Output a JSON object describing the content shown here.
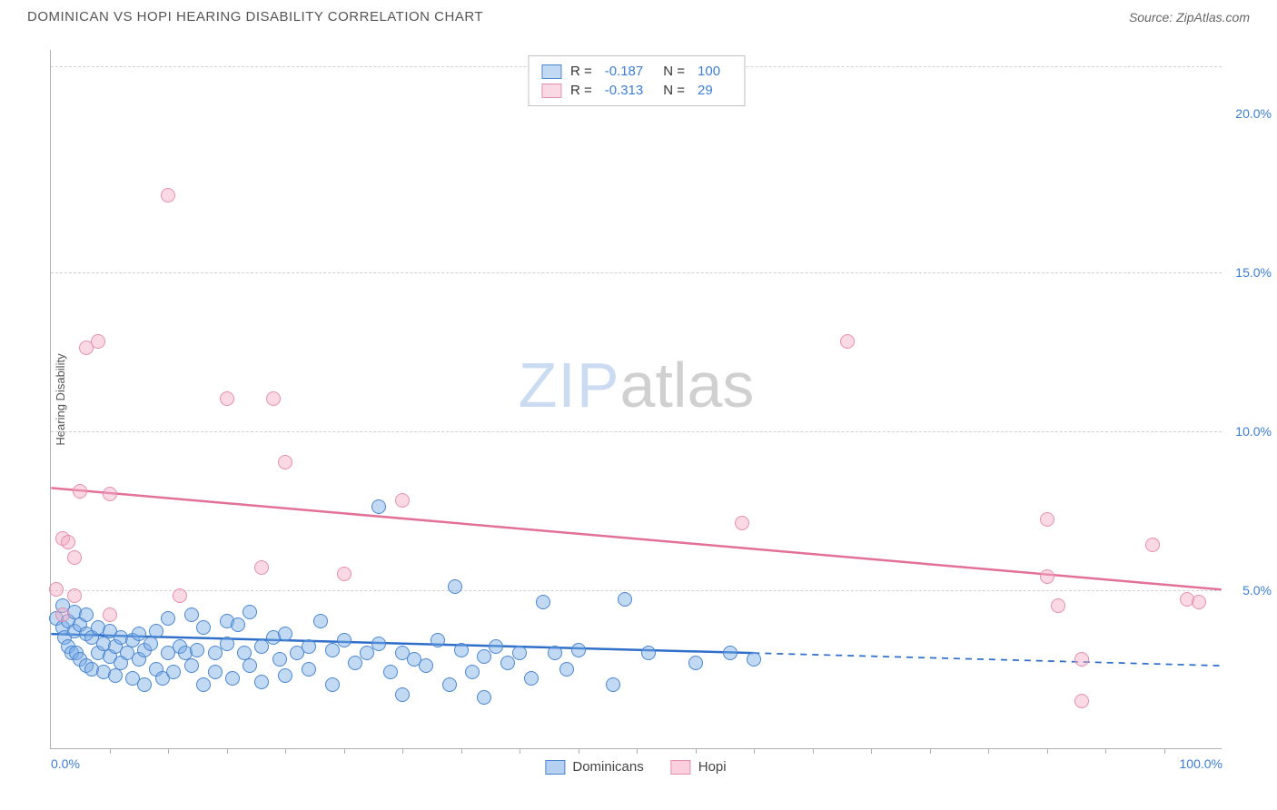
{
  "title": "DOMINICAN VS HOPI HEARING DISABILITY CORRELATION CHART",
  "source": "Source: ZipAtlas.com",
  "watermark": {
    "part1": "ZIP",
    "part2": "atlas"
  },
  "chart": {
    "type": "scatter",
    "background_color": "#ffffff",
    "grid_color": "#d0d0d0",
    "axis_color": "#b0b0b0",
    "ylabel": "Hearing Disability",
    "xlim": [
      0,
      100
    ],
    "ylim": [
      0,
      22
    ],
    "yticks": [
      {
        "value": 5,
        "label": "5.0%"
      },
      {
        "value": 10,
        "label": "10.0%"
      },
      {
        "value": 15,
        "label": "15.0%"
      },
      {
        "value": 20,
        "label": "20.0%"
      }
    ],
    "ygridlines": [
      5,
      10,
      15,
      21.5
    ],
    "xticks_at": [
      5,
      10,
      15,
      20,
      25,
      30,
      35,
      40,
      45,
      50,
      55,
      60,
      65,
      70,
      75,
      80,
      85,
      90,
      95
    ],
    "xlabels": [
      {
        "value": 0,
        "label": "0.0%",
        "align": "left"
      },
      {
        "value": 100,
        "label": "100.0%",
        "align": "right"
      }
    ],
    "label_fontsize": 14,
    "label_color": "#3b7dd8",
    "point_radius": 8,
    "point_stroke_width": 1.2,
    "series": [
      {
        "name": "Dominicans",
        "fill": "rgba(120,170,230,0.45)",
        "stroke": "#4a86d0",
        "line_color": "#2f6fc9",
        "line_width": 2.5,
        "r_value": "-0.187",
        "n_value": "100",
        "trend": {
          "x0": 0,
          "y0": 3.6,
          "x1": 100,
          "y1": 2.6,
          "solid_until_x": 60
        },
        "points": [
          [
            0.5,
            4.1
          ],
          [
            1,
            3.8
          ],
          [
            1,
            4.5
          ],
          [
            1.2,
            3.5
          ],
          [
            1.5,
            3.2
          ],
          [
            1.5,
            4.0
          ],
          [
            1.8,
            3.0
          ],
          [
            2,
            3.7
          ],
          [
            2,
            4.3
          ],
          [
            2.2,
            3.0
          ],
          [
            2.5,
            3.9
          ],
          [
            2.5,
            2.8
          ],
          [
            3,
            3.6
          ],
          [
            3,
            4.2
          ],
          [
            3,
            2.6
          ],
          [
            3.5,
            3.5
          ],
          [
            3.5,
            2.5
          ],
          [
            4,
            3.8
          ],
          [
            4,
            3.0
          ],
          [
            4.5,
            3.3
          ],
          [
            4.5,
            2.4
          ],
          [
            5,
            3.7
          ],
          [
            5,
            2.9
          ],
          [
            5.5,
            3.2
          ],
          [
            5.5,
            2.3
          ],
          [
            6,
            3.5
          ],
          [
            6,
            2.7
          ],
          [
            6.5,
            3.0
          ],
          [
            7,
            3.4
          ],
          [
            7,
            2.2
          ],
          [
            7.5,
            3.6
          ],
          [
            7.5,
            2.8
          ],
          [
            8,
            3.1
          ],
          [
            8,
            2.0
          ],
          [
            8.5,
            3.3
          ],
          [
            9,
            2.5
          ],
          [
            9,
            3.7
          ],
          [
            9.5,
            2.2
          ],
          [
            10,
            3.0
          ],
          [
            10,
            4.1
          ],
          [
            10.5,
            2.4
          ],
          [
            11,
            3.2
          ],
          [
            11.5,
            3.0
          ],
          [
            12,
            4.2
          ],
          [
            12,
            2.6
          ],
          [
            12.5,
            3.1
          ],
          [
            13,
            3.8
          ],
          [
            13,
            2.0
          ],
          [
            14,
            3.0
          ],
          [
            14,
            2.4
          ],
          [
            15,
            4.0
          ],
          [
            15,
            3.3
          ],
          [
            15.5,
            2.2
          ],
          [
            16,
            3.9
          ],
          [
            16.5,
            3.0
          ],
          [
            17,
            2.6
          ],
          [
            17,
            4.3
          ],
          [
            18,
            3.2
          ],
          [
            18,
            2.1
          ],
          [
            19,
            3.5
          ],
          [
            19.5,
            2.8
          ],
          [
            20,
            3.6
          ],
          [
            20,
            2.3
          ],
          [
            21,
            3.0
          ],
          [
            22,
            3.2
          ],
          [
            22,
            2.5
          ],
          [
            23,
            4.0
          ],
          [
            24,
            3.1
          ],
          [
            24,
            2.0
          ],
          [
            25,
            3.4
          ],
          [
            26,
            2.7
          ],
          [
            27,
            3.0
          ],
          [
            28,
            7.6
          ],
          [
            28,
            3.3
          ],
          [
            29,
            2.4
          ],
          [
            30,
            3.0
          ],
          [
            30,
            1.7
          ],
          [
            31,
            2.8
          ],
          [
            32,
            2.6
          ],
          [
            33,
            3.4
          ],
          [
            34,
            2.0
          ],
          [
            34.5,
            5.1
          ],
          [
            35,
            3.1
          ],
          [
            36,
            2.4
          ],
          [
            37,
            2.9
          ],
          [
            37,
            1.6
          ],
          [
            38,
            3.2
          ],
          [
            39,
            2.7
          ],
          [
            40,
            3.0
          ],
          [
            41,
            2.2
          ],
          [
            42,
            4.6
          ],
          [
            43,
            3.0
          ],
          [
            44,
            2.5
          ],
          [
            45,
            3.1
          ],
          [
            48,
            2.0
          ],
          [
            49,
            4.7
          ],
          [
            51,
            3.0
          ],
          [
            55,
            2.7
          ],
          [
            58,
            3.0
          ],
          [
            60,
            2.8
          ]
        ]
      },
      {
        "name": "Hopi",
        "fill": "rgba(245,170,195,0.45)",
        "stroke": "#e48fae",
        "line_color": "#e27099",
        "line_width": 2.5,
        "r_value": "-0.313",
        "n_value": "29",
        "trend": {
          "x0": 0,
          "y0": 8.2,
          "x1": 100,
          "y1": 5.0,
          "solid_until_x": 100
        },
        "points": [
          [
            0.5,
            5.0
          ],
          [
            1,
            6.6
          ],
          [
            1,
            4.2
          ],
          [
            1.5,
            6.5
          ],
          [
            2,
            6.0
          ],
          [
            2,
            4.8
          ],
          [
            2.5,
            8.1
          ],
          [
            3,
            12.6
          ],
          [
            4,
            12.8
          ],
          [
            5,
            4.2
          ],
          [
            5,
            8.0
          ],
          [
            10,
            17.4
          ],
          [
            11,
            4.8
          ],
          [
            15,
            11.0
          ],
          [
            18,
            5.7
          ],
          [
            19,
            11.0
          ],
          [
            20,
            9.0
          ],
          [
            25,
            5.5
          ],
          [
            30,
            7.8
          ],
          [
            59,
            7.1
          ],
          [
            68,
            12.8
          ],
          [
            85,
            7.2
          ],
          [
            85,
            5.4
          ],
          [
            86,
            4.5
          ],
          [
            88,
            2.8
          ],
          [
            88,
            1.5
          ],
          [
            94,
            6.4
          ],
          [
            97,
            4.7
          ],
          [
            98,
            4.6
          ]
        ]
      }
    ]
  },
  "legend_bottom": [
    {
      "label": "Dominicans",
      "fill": "rgba(120,170,230,0.55)",
      "stroke": "#4a86d0"
    },
    {
      "label": "Hopi",
      "fill": "rgba(245,170,195,0.55)",
      "stroke": "#e48fae"
    }
  ]
}
